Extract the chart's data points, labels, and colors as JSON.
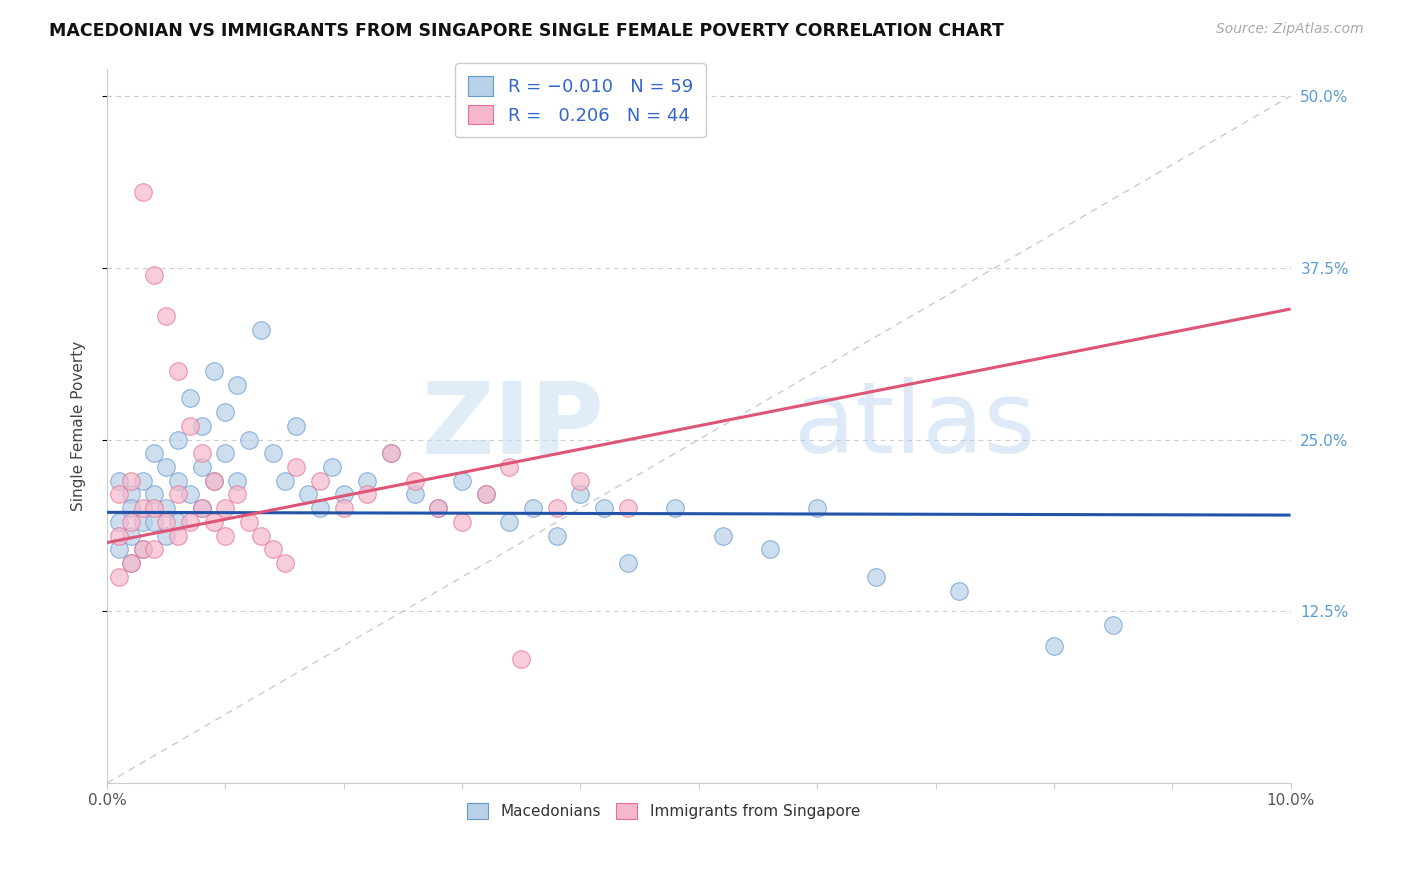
{
  "title": "MACEDONIAN VS IMMIGRANTS FROM SINGAPORE SINGLE FEMALE POVERTY CORRELATION CHART",
  "source": "Source: ZipAtlas.com",
  "ylabel": "Single Female Poverty",
  "xlim": [
    0.0,
    0.1
  ],
  "ylim": [
    0.0,
    0.52
  ],
  "macedonians_R": -0.01,
  "macedonians_N": 59,
  "singapore_R": 0.206,
  "singapore_N": 44,
  "legend_labels": [
    "Macedonians",
    "Immigrants from Singapore"
  ],
  "blue_fill": "#b8d0e8",
  "pink_fill": "#f5b8cb",
  "blue_edge": "#6699cc",
  "pink_edge": "#e87090",
  "blue_line_color": "#2255aa",
  "pink_line_color": "#dd5577",
  "diag_color": "#cccccc",
  "grid_color": "#cccccc",
  "right_tick_color": "#5b9bd5",
  "mac_x": [
    0.001,
    0.001,
    0.001,
    0.002,
    0.002,
    0.002,
    0.002,
    0.003,
    0.003,
    0.003,
    0.004,
    0.004,
    0.004,
    0.005,
    0.005,
    0.005,
    0.006,
    0.006,
    0.006,
    0.007,
    0.007,
    0.008,
    0.008,
    0.008,
    0.009,
    0.009,
    0.01,
    0.01,
    0.011,
    0.011,
    0.012,
    0.013,
    0.014,
    0.015,
    0.016,
    0.017,
    0.018,
    0.019,
    0.02,
    0.022,
    0.024,
    0.026,
    0.028,
    0.03,
    0.032,
    0.034,
    0.036,
    0.038,
    0.04,
    0.042,
    0.044,
    0.048,
    0.052,
    0.056,
    0.06,
    0.065,
    0.072,
    0.08,
    0.085
  ],
  "mac_y": [
    0.22,
    0.19,
    0.17,
    0.21,
    0.2,
    0.18,
    0.16,
    0.22,
    0.19,
    0.17,
    0.24,
    0.21,
    0.19,
    0.23,
    0.2,
    0.18,
    0.25,
    0.22,
    0.19,
    0.28,
    0.21,
    0.26,
    0.23,
    0.2,
    0.3,
    0.22,
    0.27,
    0.24,
    0.29,
    0.22,
    0.25,
    0.33,
    0.24,
    0.22,
    0.26,
    0.21,
    0.2,
    0.23,
    0.21,
    0.22,
    0.24,
    0.21,
    0.2,
    0.22,
    0.21,
    0.19,
    0.2,
    0.18,
    0.21,
    0.2,
    0.16,
    0.2,
    0.18,
    0.17,
    0.2,
    0.15,
    0.14,
    0.1,
    0.115
  ],
  "sing_x": [
    0.001,
    0.001,
    0.001,
    0.002,
    0.002,
    0.002,
    0.003,
    0.003,
    0.003,
    0.004,
    0.004,
    0.004,
    0.005,
    0.005,
    0.006,
    0.006,
    0.006,
    0.007,
    0.007,
    0.008,
    0.008,
    0.009,
    0.009,
    0.01,
    0.01,
    0.011,
    0.012,
    0.013,
    0.014,
    0.015,
    0.016,
    0.018,
    0.02,
    0.022,
    0.024,
    0.026,
    0.028,
    0.03,
    0.032,
    0.034,
    0.035,
    0.038,
    0.04,
    0.044
  ],
  "sing_y": [
    0.21,
    0.18,
    0.15,
    0.22,
    0.19,
    0.16,
    0.43,
    0.2,
    0.17,
    0.37,
    0.2,
    0.17,
    0.34,
    0.19,
    0.3,
    0.21,
    0.18,
    0.26,
    0.19,
    0.24,
    0.2,
    0.22,
    0.19,
    0.2,
    0.18,
    0.21,
    0.19,
    0.18,
    0.17,
    0.16,
    0.23,
    0.22,
    0.2,
    0.21,
    0.24,
    0.22,
    0.2,
    0.19,
    0.21,
    0.23,
    0.09,
    0.2,
    0.22,
    0.2
  ],
  "blue_line_x0": 0.0,
  "blue_line_y0": 0.197,
  "blue_line_x1": 0.1,
  "blue_line_y1": 0.195,
  "pink_line_x0": 0.0,
  "pink_line_y0": 0.175,
  "pink_line_x1": 0.1,
  "pink_line_y1": 0.345
}
